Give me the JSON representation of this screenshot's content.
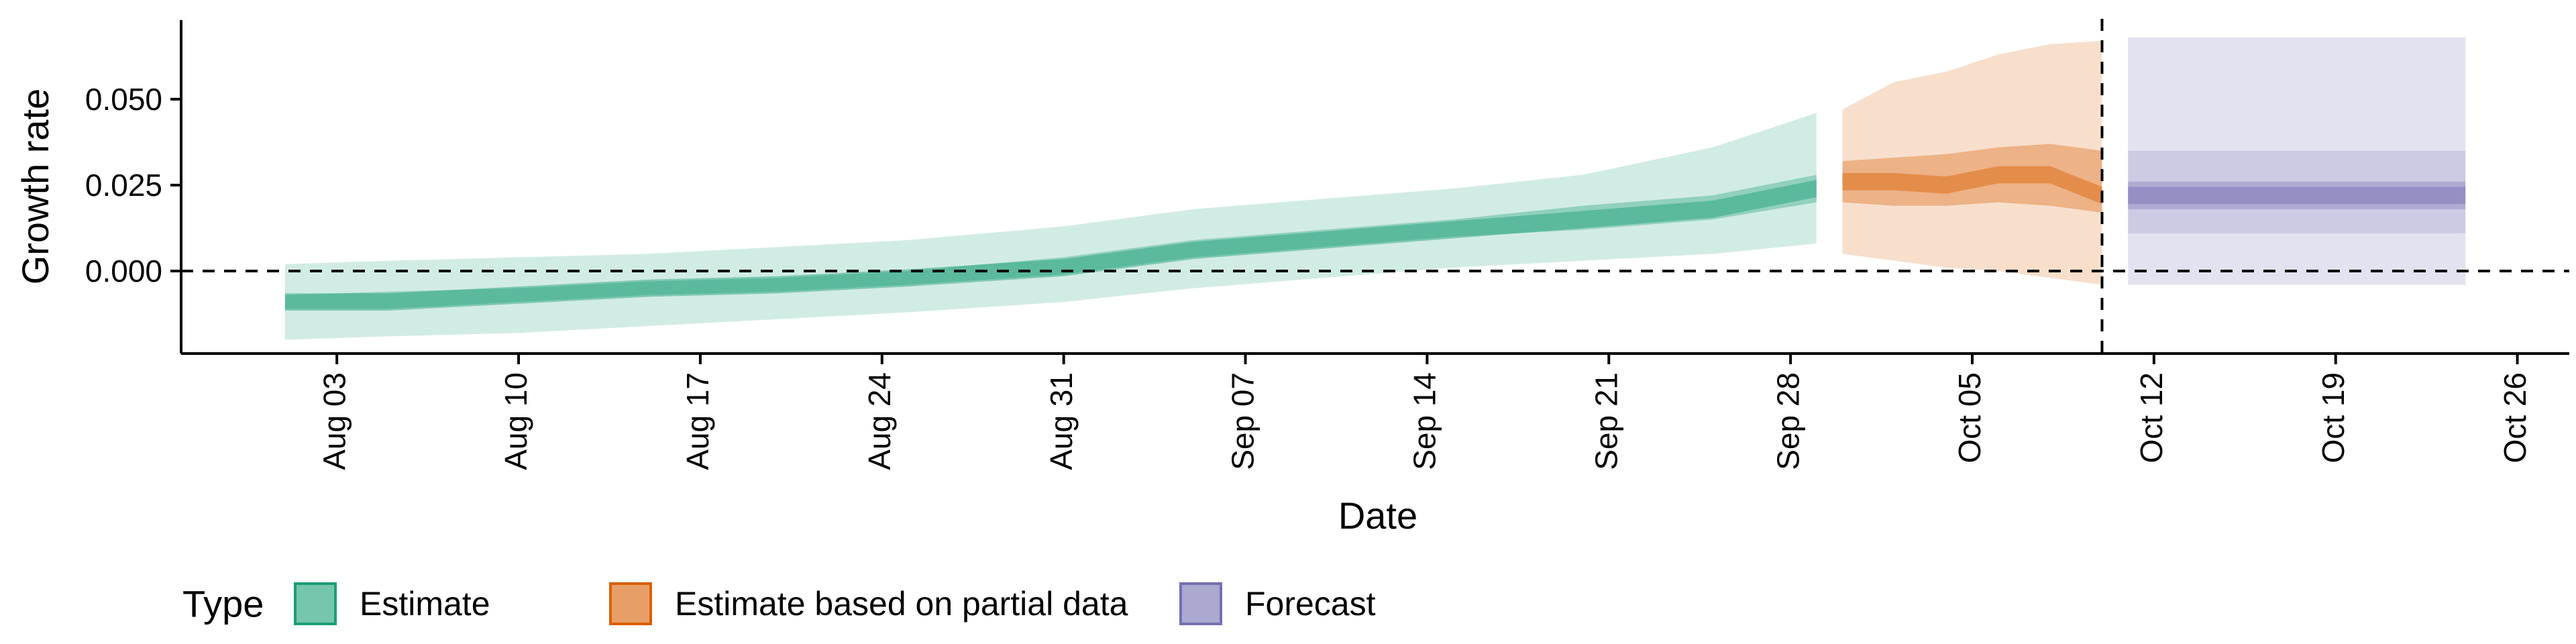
{
  "chart_data": {
    "type": "area",
    "xlabel": "Date",
    "ylabel": "Growth rate",
    "x_ticks": [
      "Aug 03",
      "Aug 10",
      "Aug 17",
      "Aug 24",
      "Aug 31",
      "Sep 07",
      "Sep 14",
      "Sep 21",
      "Sep 28",
      "Oct 05",
      "Oct 12",
      "Oct 19",
      "Oct 26"
    ],
    "y_ticks": [
      "0.000",
      "0.025",
      "0.050"
    ],
    "xlim": [
      "2020-07-28",
      "2020-10-28"
    ],
    "ylim": [
      -0.024,
      0.073
    ],
    "reference_lines": {
      "hline_y": 0.0,
      "vline_date": "2020-10-10"
    },
    "legend": {
      "title": "Type",
      "position": "bottom",
      "items": [
        {
          "label": "Estimate",
          "color": "#1b9e77"
        },
        {
          "label": "Estimate based on partial data",
          "color": "#d95f02"
        },
        {
          "label": "Forecast",
          "color": "#7570b3"
        }
      ]
    },
    "series": [
      {
        "name": "Estimate",
        "color": "#1b9e77",
        "x": [
          "2020-08-01",
          "2020-08-05",
          "2020-08-10",
          "2020-08-15",
          "2020-08-20",
          "2020-08-25",
          "2020-08-31",
          "2020-09-05",
          "2020-09-10",
          "2020-09-15",
          "2020-09-20",
          "2020-09-25",
          "2020-09-29"
        ],
        "median": [
          -0.009,
          -0.009,
          -0.007,
          -0.005,
          -0.004,
          -0.002,
          0.001,
          0.006,
          0.009,
          0.012,
          0.015,
          0.018,
          0.024
        ],
        "lower_50": [
          -0.011,
          -0.011,
          -0.009,
          -0.007,
          -0.006,
          -0.004,
          -0.001,
          0.004,
          0.007,
          0.01,
          0.012,
          0.015,
          0.02
        ],
        "upper_50": [
          -0.007,
          -0.006,
          -0.005,
          -0.003,
          -0.002,
          0.0,
          0.004,
          0.009,
          0.012,
          0.015,
          0.019,
          0.022,
          0.028
        ],
        "lower_90": [
          -0.02,
          -0.019,
          -0.018,
          -0.016,
          -0.014,
          -0.012,
          -0.009,
          -0.005,
          -0.002,
          0.001,
          0.003,
          0.005,
          0.008
        ],
        "upper_90": [
          0.002,
          0.003,
          0.004,
          0.005,
          0.007,
          0.009,
          0.013,
          0.018,
          0.021,
          0.024,
          0.028,
          0.036,
          0.046
        ]
      },
      {
        "name": "Estimate based on partial data",
        "color": "#d95f02",
        "x": [
          "2020-09-30",
          "2020-10-02",
          "2020-10-04",
          "2020-10-06",
          "2020-10-08",
          "2020-10-10"
        ],
        "median": [
          0.026,
          0.026,
          0.025,
          0.028,
          0.028,
          0.022
        ],
        "lower_50": [
          0.02,
          0.019,
          0.019,
          0.02,
          0.019,
          0.017
        ],
        "upper_50": [
          0.032,
          0.033,
          0.034,
          0.036,
          0.037,
          0.035
        ],
        "lower_90": [
          0.005,
          0.003,
          0.001,
          0.0,
          -0.002,
          -0.004
        ],
        "upper_90": [
          0.047,
          0.055,
          0.058,
          0.063,
          0.066,
          0.067
        ]
      },
      {
        "name": "Forecast",
        "color": "#7570b3",
        "x": [
          "2020-10-11",
          "2020-10-24"
        ],
        "median": [
          0.022,
          0.022
        ],
        "lower_50": [
          0.018,
          0.018
        ],
        "upper_50": [
          0.026,
          0.026
        ],
        "lower_90": [
          0.011,
          0.011
        ],
        "upper_90": [
          0.035,
          0.035
        ],
        "lower_outer": [
          -0.004,
          -0.004
        ],
        "upper_outer": [
          0.068,
          0.068
        ]
      }
    ]
  }
}
